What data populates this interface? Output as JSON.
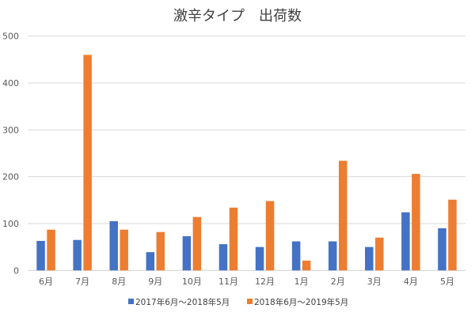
{
  "chart_data": {
    "type": "bar",
    "title": "激辛タイプ　出荷数",
    "xlabel": "",
    "ylabel": "",
    "ylim": [
      0,
      500
    ],
    "yticks": [
      "0",
      "100",
      "200",
      "300",
      "400",
      "500"
    ],
    "grid": true,
    "legend_position": "bottom",
    "categories": [
      "6月",
      "7月",
      "8月",
      "9月",
      "10月",
      "11月",
      "12月",
      "1月",
      "2月",
      "3月",
      "4月",
      "5月"
    ],
    "series": [
      {
        "name": "2017年6月～2018年5月",
        "color": "#4472C4",
        "values": [
          63,
          65,
          105,
          39,
          73,
          56,
          50,
          62,
          62,
          50,
          124,
          90
        ]
      },
      {
        "name": "2018年6月～2019年5月",
        "color": "#ED7D31",
        "values": [
          87,
          460,
          87,
          82,
          114,
          134,
          148,
          21,
          234,
          70,
          206,
          151
        ]
      }
    ]
  }
}
